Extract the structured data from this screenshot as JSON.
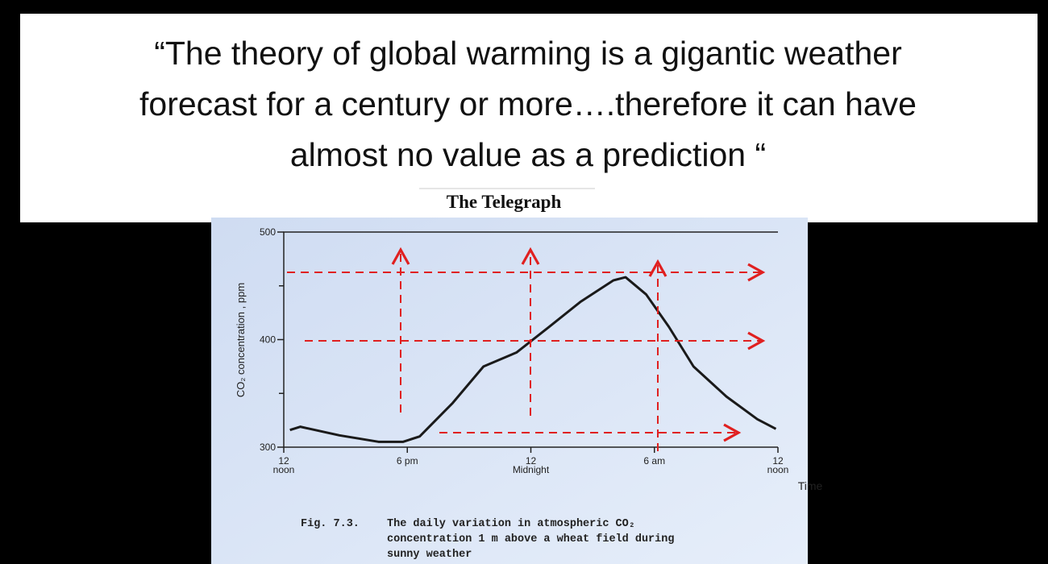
{
  "quote_lines": [
    "“The theory of global warming is a gigantic weather",
    "forecast for a century or more….therefore it can have",
    "almost no value as a prediction “"
  ],
  "source": "The Telegraph",
  "chart_data": {
    "type": "line",
    "xlabel": "Time",
    "ylabel": "CO₂ concentration , ppm",
    "x": [
      0.3,
      0.8,
      2.7,
      4.6,
      5.8,
      6.6,
      8.2,
      9.7,
      11.3,
      12.9,
      14.4,
      16.0,
      16.6,
      17.6,
      18.7,
      19.9,
      21.5,
      23.0,
      23.9
    ],
    "series": [
      {
        "name": "CO₂",
        "color": "#1a1a1a",
        "values": [
          316,
          319,
          311,
          305,
          305,
          310,
          341,
          375,
          388,
          412,
          435,
          455,
          458,
          442,
          412,
          375,
          347,
          326,
          317
        ]
      }
    ],
    "xlim": [
      0,
      24
    ],
    "xticks": [
      {
        "value": 0,
        "label": "12\nnoon"
      },
      {
        "value": 6,
        "label": "6 pm"
      },
      {
        "value": 12,
        "label": "12\nMidnight"
      },
      {
        "value": 18,
        "label": "6 am"
      },
      {
        "value": 24,
        "label": "12\nnoon"
      }
    ],
    "ylim": [
      300,
      500
    ],
    "yticks": [
      300,
      400,
      500
    ],
    "minor_yticks": [
      350,
      450
    ],
    "caption": {
      "label": "Fig. 7.3.",
      "lines": [
        "The daily variation in atmospheric CO₂",
        "concentration 1 m above a wheat field during",
        "sunny weather"
      ]
    }
  }
}
